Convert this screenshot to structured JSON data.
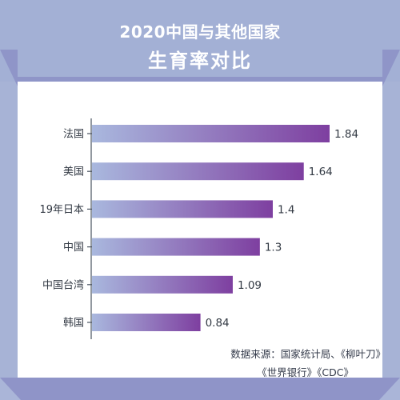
{
  "header": {
    "title_line1": "2020中国与其他国家",
    "title_line2": "生育率对比"
  },
  "source": {
    "line1": "数据来源：国家统计局、《柳叶刀》",
    "line2": "《世界银行》《CDC》"
  },
  "colors": {
    "bar_start": "#a9b8de",
    "bar_end": "#7e3fa0",
    "frame": "#a7b3d6",
    "accent": "#8f95c8"
  },
  "chart_data": {
    "type": "bar",
    "orientation": "horizontal",
    "title": "2020中国与其他国家 生育率对比",
    "categories": [
      "法国",
      "美国",
      "19年日本",
      "中国",
      "中国台湾",
      "韩国"
    ],
    "values": [
      1.84,
      1.64,
      1.4,
      1.3,
      1.09,
      0.84
    ],
    "value_labels": [
      "1.84",
      "1.64",
      "1.4",
      "1.3",
      "1.09",
      "0.84"
    ],
    "xlim": [
      0,
      1.84
    ],
    "grid": false,
    "legend": "none"
  }
}
